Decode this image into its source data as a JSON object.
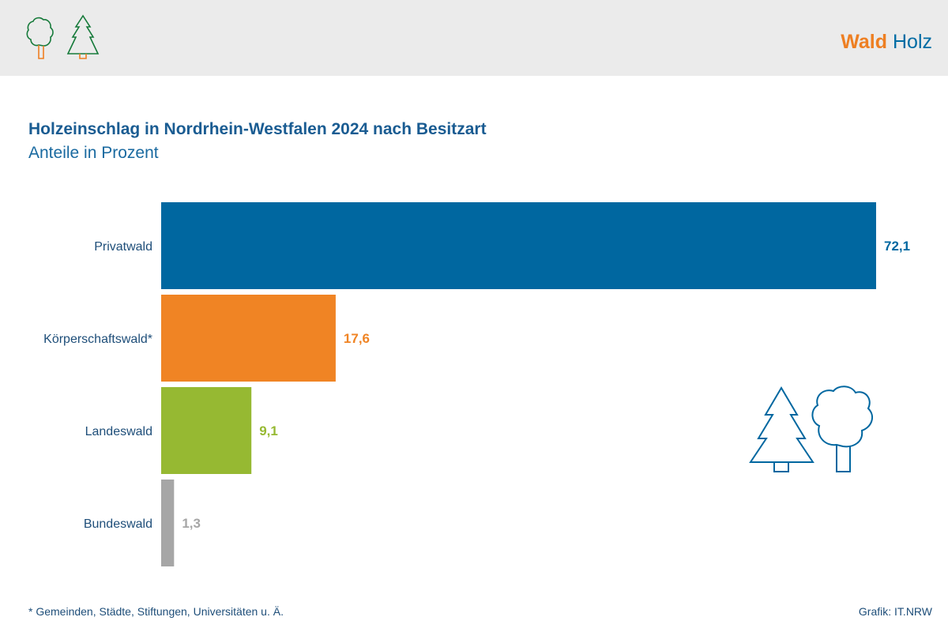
{
  "header": {
    "brand_primary": "Wald",
    "brand_secondary": "Holz",
    "icons": [
      "deciduous-tree-icon",
      "conifer-tree-icon"
    ]
  },
  "title": "Holzeinschlag in Nordrhein-Westfalen 2024 nach Besitzart",
  "subtitle": "Anteile in Prozent",
  "footnote": "* Gemeinden, Städte, Stiftungen, Universitäten u. Ä.",
  "source": "Grafik: IT.NRW",
  "colors": {
    "accent_blue": "#0067a0",
    "accent_orange": "#f08424",
    "accent_green": "#96b932",
    "accent_gray": "#a6a6a6"
  },
  "chart_data": {
    "type": "bar",
    "orientation": "horizontal",
    "title": "Holzeinschlag in Nordrhein-Westfalen 2024 nach Besitzart",
    "subtitle": "Anteile in Prozent",
    "categories": [
      "Privatwald",
      "Körperschaftswald*",
      "Landeswald",
      "Bundeswald"
    ],
    "values": [
      72.1,
      17.6,
      9.1,
      1.3
    ],
    "value_labels": [
      "72,1",
      "17,6",
      "9,1",
      "1,3"
    ],
    "colors": [
      "#0067a0",
      "#f08424",
      "#96b932",
      "#a6a6a6"
    ],
    "xlim": [
      0,
      72.1
    ],
    "grid": false,
    "legend": "none"
  }
}
